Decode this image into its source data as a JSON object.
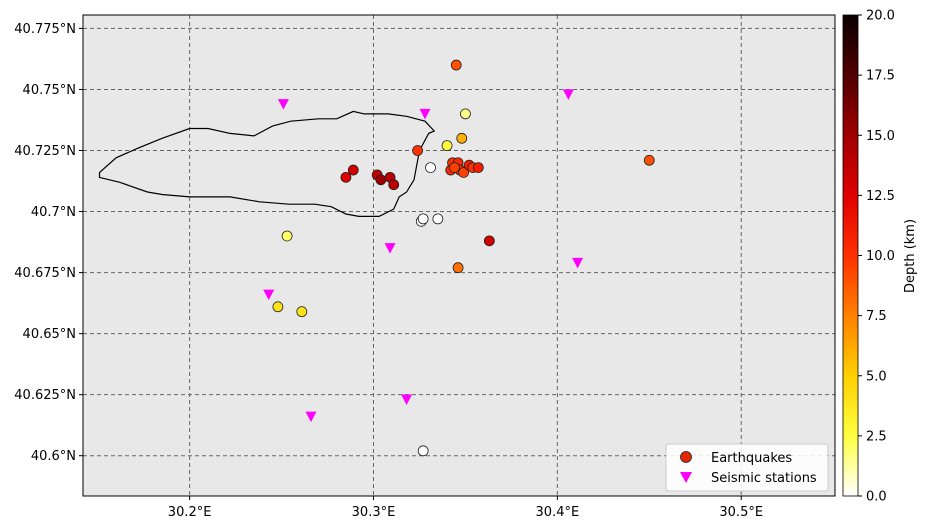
{
  "chart_data": {
    "type": "scatter",
    "title": "",
    "xlim": [
      30.142,
      30.551
    ],
    "ylim": [
      40.5835,
      40.7805
    ],
    "grid": true,
    "x_ticks": [
      {
        "value": 30.2,
        "label": "30.2°E"
      },
      {
        "value": 30.3,
        "label": "30.3°E"
      },
      {
        "value": 30.4,
        "label": "30.4°E"
      },
      {
        "value": 30.5,
        "label": "30.5°E"
      }
    ],
    "y_ticks": [
      {
        "value": 40.6,
        "label": "40.6°N"
      },
      {
        "value": 40.625,
        "label": "40.625°N"
      },
      {
        "value": 40.65,
        "label": "40.65°N"
      },
      {
        "value": 40.675,
        "label": "40.675°N"
      },
      {
        "value": 40.7,
        "label": "40.7°N"
      },
      {
        "value": 40.725,
        "label": "40.725°N"
      },
      {
        "value": 40.75,
        "label": "40.75°N"
      },
      {
        "value": 40.775,
        "label": "40.775°N"
      }
    ],
    "colorbar": {
      "label": "Depth (km)",
      "range": [
        0,
        20
      ],
      "ticks": [
        "0.0",
        "2.5",
        "5.0",
        "7.5",
        "10.0",
        "12.5",
        "15.0",
        "17.5",
        "20.0"
      ],
      "colormap": "hot_r"
    },
    "legend": {
      "placement": "lower-right",
      "entries": [
        "Earthquakes",
        "Seismic stations"
      ]
    },
    "background_color": "#e8e8e8",
    "station_color": "#ff00ff",
    "lake_outline": [
      [
        30.151,
        40.716
      ],
      [
        30.151,
        40.714
      ],
      [
        30.162,
        40.712
      ],
      [
        30.177,
        40.708
      ],
      [
        30.185,
        40.707
      ],
      [
        30.2,
        40.706
      ],
      [
        30.222,
        40.706
      ],
      [
        30.238,
        40.704
      ],
      [
        30.254,
        40.703
      ],
      [
        30.268,
        40.703
      ],
      [
        30.277,
        40.702
      ],
      [
        30.285,
        40.699
      ],
      [
        30.292,
        40.698
      ],
      [
        30.303,
        40.698
      ],
      [
        30.311,
        40.701
      ],
      [
        30.314,
        40.706
      ],
      [
        30.318,
        40.708
      ],
      [
        30.322,
        40.713
      ],
      [
        30.325,
        40.725
      ],
      [
        30.33,
        40.732
      ],
      [
        30.333,
        40.733
      ],
      [
        30.328,
        40.737
      ],
      [
        30.318,
        40.739
      ],
      [
        30.308,
        40.74
      ],
      [
        30.295,
        40.74
      ],
      [
        30.289,
        40.741
      ],
      [
        30.28,
        40.738
      ],
      [
        30.27,
        40.738
      ],
      [
        30.255,
        40.737
      ],
      [
        30.245,
        40.735
      ],
      [
        30.235,
        40.731
      ],
      [
        30.222,
        40.732
      ],
      [
        30.21,
        40.734
      ],
      [
        30.2,
        40.734
      ],
      [
        30.185,
        40.73
      ],
      [
        30.172,
        40.726
      ],
      [
        30.16,
        40.722
      ],
      [
        30.151,
        40.716
      ]
    ],
    "series": [
      {
        "name": "Earthquakes",
        "marker": "circle",
        "points": [
          {
            "x": 30.345,
            "y": 40.76,
            "depth": 9.0
          },
          {
            "x": 30.35,
            "y": 40.74,
            "depth": 1.5
          },
          {
            "x": 30.348,
            "y": 40.73,
            "depth": 6.0
          },
          {
            "x": 30.34,
            "y": 40.727,
            "depth": 2.5
          },
          {
            "x": 30.324,
            "y": 40.725,
            "depth": 10.0
          },
          {
            "x": 30.331,
            "y": 40.718,
            "depth": 0.0
          },
          {
            "x": 30.45,
            "y": 40.721,
            "depth": 9.0
          },
          {
            "x": 30.289,
            "y": 40.717,
            "depth": 13.0
          },
          {
            "x": 30.285,
            "y": 40.714,
            "depth": 12.5
          },
          {
            "x": 30.302,
            "y": 40.715,
            "depth": 13.5
          },
          {
            "x": 30.304,
            "y": 40.713,
            "depth": 15.0
          },
          {
            "x": 30.309,
            "y": 40.714,
            "depth": 14.0
          },
          {
            "x": 30.311,
            "y": 40.711,
            "depth": 14.0
          },
          {
            "x": 30.342,
            "y": 40.717,
            "depth": 10.5
          },
          {
            "x": 30.343,
            "y": 40.72,
            "depth": 10.0
          },
          {
            "x": 30.345,
            "y": 40.718,
            "depth": 9.0
          },
          {
            "x": 30.346,
            "y": 40.72,
            "depth": 10.5
          },
          {
            "x": 30.347,
            "y": 40.717,
            "depth": 10.0
          },
          {
            "x": 30.349,
            "y": 40.716,
            "depth": 9.5
          },
          {
            "x": 30.352,
            "y": 40.719,
            "depth": 11.0
          },
          {
            "x": 30.354,
            "y": 40.718,
            "depth": 10.0
          },
          {
            "x": 30.357,
            "y": 40.718,
            "depth": 11.0
          },
          {
            "x": 30.344,
            "y": 40.718,
            "depth": 9.5
          },
          {
            "x": 30.326,
            "y": 40.696,
            "depth": 0.0
          },
          {
            "x": 30.327,
            "y": 40.697,
            "depth": 0.0
          },
          {
            "x": 30.335,
            "y": 40.697,
            "depth": 0.0
          },
          {
            "x": 30.363,
            "y": 40.688,
            "depth": 13.0
          },
          {
            "x": 30.253,
            "y": 40.69,
            "depth": 2.0
          },
          {
            "x": 30.346,
            "y": 40.677,
            "depth": 8.0
          },
          {
            "x": 30.248,
            "y": 40.661,
            "depth": 4.0
          },
          {
            "x": 30.261,
            "y": 40.659,
            "depth": 4.0
          },
          {
            "x": 30.327,
            "y": 40.602,
            "depth": 0.0
          }
        ]
      },
      {
        "name": "Seismic stations",
        "marker": "triangle-down",
        "points": [
          {
            "x": 30.251,
            "y": 40.744
          },
          {
            "x": 30.328,
            "y": 40.74
          },
          {
            "x": 30.406,
            "y": 40.748
          },
          {
            "x": 30.309,
            "y": 40.685
          },
          {
            "x": 30.411,
            "y": 40.679
          },
          {
            "x": 30.243,
            "y": 40.666
          },
          {
            "x": 30.318,
            "y": 40.623
          },
          {
            "x": 30.266,
            "y": 40.616
          }
        ]
      }
    ]
  }
}
